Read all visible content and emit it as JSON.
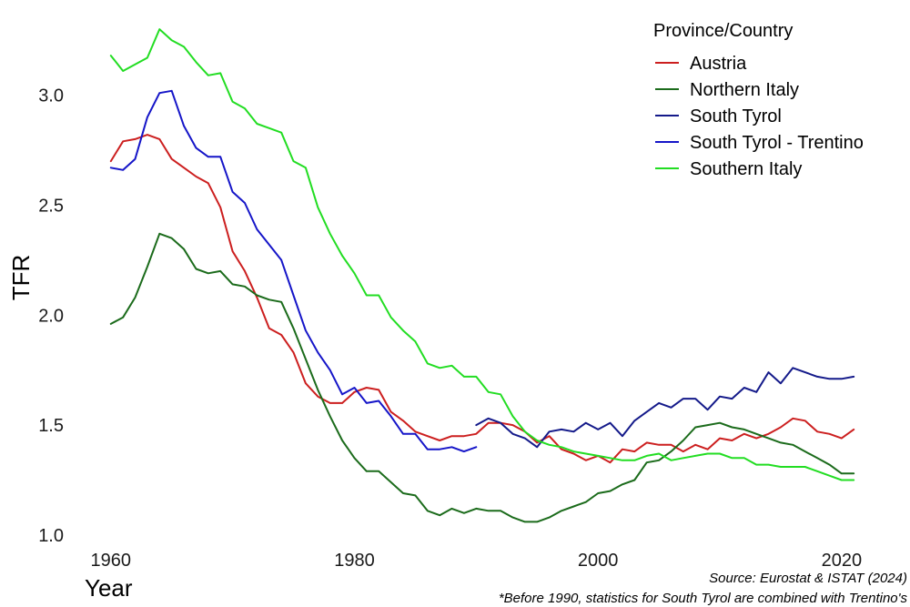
{
  "chart_data": {
    "type": "line",
    "title": "",
    "xlabel": "Year",
    "ylabel": "TFR",
    "xlim": [
      1958,
      2023
    ],
    "ylim": [
      0.95,
      3.35
    ],
    "x_ticks": [
      1960,
      1980,
      2000,
      2020
    ],
    "y_ticks": [
      "1.0",
      "1.5",
      "2.0",
      "2.5",
      "3.0"
    ],
    "grid": false,
    "legend": {
      "title": "Province/Country",
      "position": "top-right",
      "entries": [
        "Austria",
        "Northern Italy",
        "South Tyrol",
        "South Tyrol - Trentino",
        "Southern Italy"
      ]
    },
    "captions": [
      "Source: Eurostat & ISTAT (2024)",
      "*Before 1990, statistics for South Tyrol are combined with Trentino's"
    ],
    "series": [
      {
        "name": "Austria",
        "color": "#cc1f1f",
        "x": [
          1960,
          1961,
          1962,
          1963,
          1964,
          1965,
          1966,
          1967,
          1968,
          1969,
          1970,
          1971,
          1972,
          1973,
          1974,
          1975,
          1976,
          1977,
          1978,
          1979,
          1980,
          1981,
          1982,
          1983,
          1984,
          1985,
          1986,
          1987,
          1988,
          1989,
          1990,
          1991,
          1992,
          1993,
          1994,
          1995,
          1996,
          1997,
          1998,
          1999,
          2000,
          2001,
          2002,
          2003,
          2004,
          2005,
          2006,
          2007,
          2008,
          2009,
          2010,
          2011,
          2012,
          2013,
          2014,
          2015,
          2016,
          2017,
          2018,
          2019,
          2020,
          2021
        ],
        "y": [
          2.7,
          2.79,
          2.8,
          2.82,
          2.8,
          2.71,
          2.67,
          2.63,
          2.6,
          2.49,
          2.29,
          2.2,
          2.08,
          1.94,
          1.91,
          1.83,
          1.69,
          1.63,
          1.6,
          1.6,
          1.65,
          1.67,
          1.66,
          1.56,
          1.52,
          1.47,
          1.45,
          1.43,
          1.45,
          1.45,
          1.46,
          1.51,
          1.51,
          1.5,
          1.47,
          1.42,
          1.45,
          1.39,
          1.37,
          1.34,
          1.36,
          1.33,
          1.39,
          1.38,
          1.42,
          1.41,
          1.41,
          1.38,
          1.41,
          1.39,
          1.44,
          1.43,
          1.46,
          1.44,
          1.46,
          1.49,
          1.53,
          1.52,
          1.47,
          1.46,
          1.44,
          1.48
        ]
      },
      {
        "name": "Northern Italy",
        "color": "#1b6b1b",
        "x": [
          1960,
          1961,
          1962,
          1963,
          1964,
          1965,
          1966,
          1967,
          1968,
          1969,
          1970,
          1971,
          1972,
          1973,
          1974,
          1975,
          1976,
          1977,
          1978,
          1979,
          1980,
          1981,
          1982,
          1983,
          1984,
          1985,
          1986,
          1987,
          1988,
          1989,
          1990,
          1991,
          1992,
          1993,
          1994,
          1995,
          1996,
          1997,
          1998,
          1999,
          2000,
          2001,
          2002,
          2003,
          2004,
          2005,
          2006,
          2007,
          2008,
          2009,
          2010,
          2011,
          2012,
          2013,
          2014,
          2015,
          2016,
          2017,
          2018,
          2019,
          2020,
          2021
        ],
        "y": [
          1.96,
          1.99,
          2.08,
          2.22,
          2.37,
          2.35,
          2.3,
          2.21,
          2.19,
          2.2,
          2.14,
          2.13,
          2.09,
          2.07,
          2.06,
          1.94,
          1.8,
          1.66,
          1.54,
          1.43,
          1.35,
          1.29,
          1.29,
          1.24,
          1.19,
          1.18,
          1.11,
          1.09,
          1.12,
          1.1,
          1.12,
          1.11,
          1.11,
          1.08,
          1.06,
          1.06,
          1.08,
          1.11,
          1.13,
          1.15,
          1.19,
          1.2,
          1.23,
          1.25,
          1.33,
          1.34,
          1.38,
          1.43,
          1.49,
          1.5,
          1.51,
          1.49,
          1.48,
          1.46,
          1.44,
          1.42,
          1.41,
          1.38,
          1.35,
          1.32,
          1.28,
          1.28
        ]
      },
      {
        "name": "South Tyrol",
        "color": "#141a8a",
        "x": [
          1990,
          1991,
          1992,
          1993,
          1994,
          1995,
          1996,
          1997,
          1998,
          1999,
          2000,
          2001,
          2002,
          2003,
          2004,
          2005,
          2006,
          2007,
          2008,
          2009,
          2010,
          2011,
          2012,
          2013,
          2014,
          2015,
          2016,
          2017,
          2018,
          2019,
          2020,
          2021
        ],
        "y": [
          1.5,
          1.53,
          1.51,
          1.46,
          1.44,
          1.4,
          1.47,
          1.48,
          1.47,
          1.51,
          1.48,
          1.51,
          1.45,
          1.52,
          1.56,
          1.6,
          1.58,
          1.62,
          1.62,
          1.57,
          1.63,
          1.62,
          1.67,
          1.65,
          1.74,
          1.69,
          1.76,
          1.74,
          1.72,
          1.71,
          1.71,
          1.72
        ]
      },
      {
        "name": "South Tyrol - Trentino",
        "color": "#1515c8",
        "x": [
          1960,
          1961,
          1962,
          1963,
          1964,
          1965,
          1966,
          1967,
          1968,
          1969,
          1970,
          1971,
          1972,
          1973,
          1974,
          1975,
          1976,
          1977,
          1978,
          1979,
          1980,
          1981,
          1982,
          1983,
          1984,
          1985,
          1986,
          1987,
          1988,
          1989,
          1990
        ],
        "y": [
          2.67,
          2.66,
          2.71,
          2.9,
          3.01,
          3.02,
          2.86,
          2.76,
          2.72,
          2.72,
          2.56,
          2.51,
          2.39,
          2.32,
          2.25,
          2.09,
          1.93,
          1.83,
          1.75,
          1.64,
          1.67,
          1.6,
          1.61,
          1.54,
          1.46,
          1.46,
          1.39,
          1.39,
          1.4,
          1.38,
          1.4
        ]
      },
      {
        "name": "Southern Italy",
        "color": "#22dd22",
        "x": [
          1960,
          1961,
          1962,
          1963,
          1964,
          1965,
          1966,
          1967,
          1968,
          1969,
          1970,
          1971,
          1972,
          1973,
          1974,
          1975,
          1976,
          1977,
          1978,
          1979,
          1980,
          1981,
          1982,
          1983,
          1984,
          1985,
          1986,
          1987,
          1988,
          1989,
          1990,
          1991,
          1992,
          1993,
          1994,
          1995,
          1996,
          1997,
          1998,
          1999,
          2000,
          2001,
          2002,
          2003,
          2004,
          2005,
          2006,
          2007,
          2008,
          2009,
          2010,
          2011,
          2012,
          2013,
          2014,
          2015,
          2016,
          2017,
          2018,
          2019,
          2020,
          2021
        ],
        "y": [
          3.18,
          3.11,
          3.14,
          3.17,
          3.3,
          3.25,
          3.22,
          3.15,
          3.09,
          3.1,
          2.97,
          2.94,
          2.87,
          2.85,
          2.83,
          2.7,
          2.67,
          2.49,
          2.37,
          2.27,
          2.19,
          2.09,
          2.09,
          1.99,
          1.93,
          1.88,
          1.78,
          1.76,
          1.77,
          1.72,
          1.72,
          1.65,
          1.64,
          1.54,
          1.47,
          1.43,
          1.41,
          1.4,
          1.38,
          1.37,
          1.36,
          1.35,
          1.34,
          1.34,
          1.36,
          1.37,
          1.34,
          1.35,
          1.36,
          1.37,
          1.37,
          1.35,
          1.35,
          1.32,
          1.32,
          1.31,
          1.31,
          1.31,
          1.29,
          1.27,
          1.25,
          1.25
        ]
      }
    ]
  }
}
